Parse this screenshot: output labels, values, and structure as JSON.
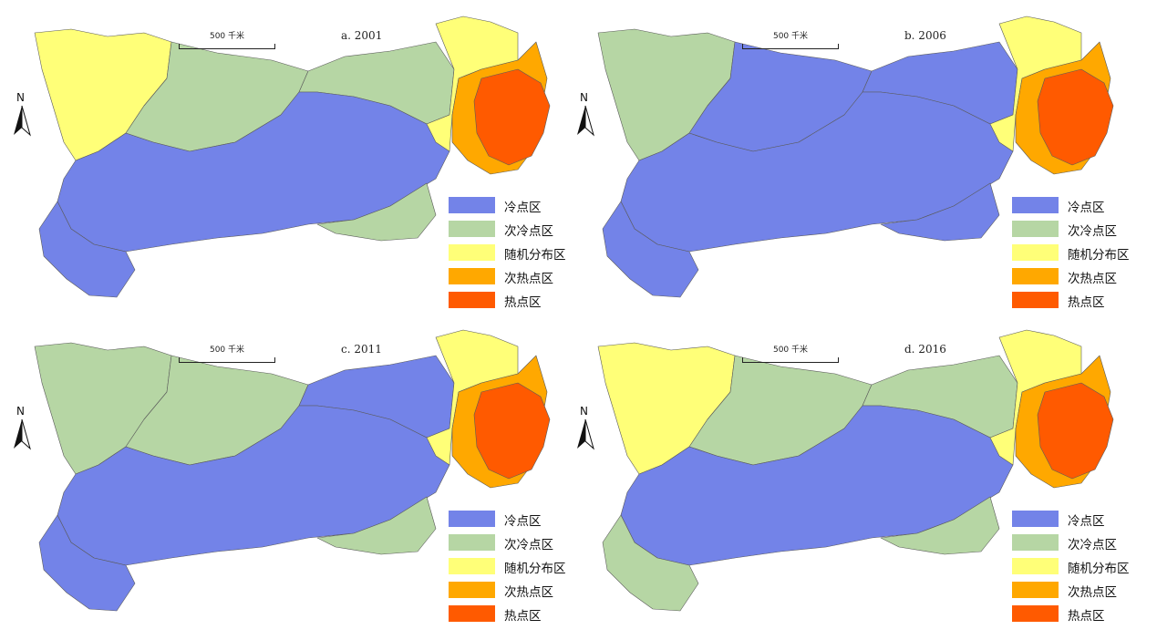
{
  "legend": {
    "items": [
      {
        "label": "冷点区",
        "color": "#7383E8"
      },
      {
        "label": "次冷点区",
        "color": "#B6D6A4"
      },
      {
        "label": "随机分布区",
        "color": "#FFFF78"
      },
      {
        "label": "次热点区",
        "color": "#FFA800"
      },
      {
        "label": "热点区",
        "color": "#FF5A00"
      }
    ]
  },
  "scale_bar": {
    "label": "500 千米"
  },
  "north_arrow": {
    "label": "N"
  },
  "boundary_color": "#5a5a5a",
  "panels": [
    {
      "label": "a. 2001",
      "regions": {
        "west": "#FFFF78",
        "northwest": "#B6D6A4",
        "central_north": "#B6D6A4",
        "central": "#7383E8",
        "south": "#7383E8",
        "southeast": "#B6D6A4",
        "east_outer": "#FFFF78",
        "east_mid": "#FFA800",
        "east_core": "#FF5A00"
      }
    },
    {
      "label": "b. 2006",
      "regions": {
        "west": "#B6D6A4",
        "northwest": "#7383E8",
        "central_north": "#7383E8",
        "central": "#7383E8",
        "south": "#7383E8",
        "southeast": "#7383E8",
        "east_outer": "#FFFF78",
        "east_mid": "#FFA800",
        "east_core": "#FF5A00"
      }
    },
    {
      "label": "c. 2011",
      "regions": {
        "west": "#B6D6A4",
        "northwest": "#B6D6A4",
        "central_north": "#7383E8",
        "central": "#7383E8",
        "south": "#7383E8",
        "southeast": "#B6D6A4",
        "east_outer": "#FFFF78",
        "east_mid": "#FFA800",
        "east_core": "#FF5A00"
      }
    },
    {
      "label": "d. 2016",
      "regions": {
        "west": "#FFFF78",
        "northwest": "#B6D6A4",
        "central_north": "#B6D6A4",
        "central": "#7383E8",
        "south": "#B6D6A4",
        "southeast": "#B6D6A4",
        "east_outer": "#FFFF78",
        "east_mid": "#FFA800",
        "east_core": "#FF5A00"
      }
    }
  ]
}
